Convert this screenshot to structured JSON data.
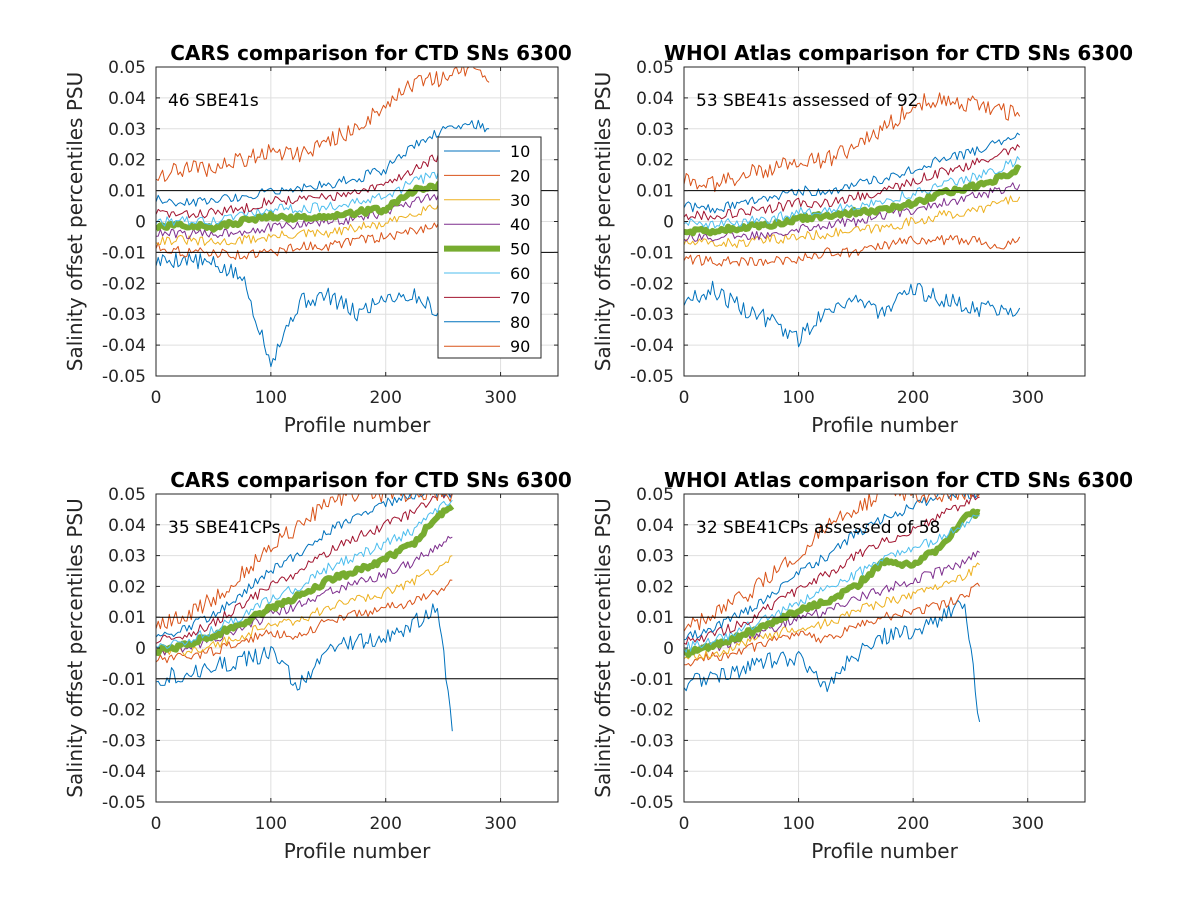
{
  "chart_data": [
    {
      "type": "line",
      "title": "CARS comparison for CTD SNs 6300",
      "annotation": "46 SBE41s",
      "xlabel": "Profile number",
      "ylabel": "Salinity offset percentiles PSU",
      "xlim": [
        0,
        350
      ],
      "ylim": [
        -0.05,
        0.05
      ],
      "xticks": [
        "0",
        "100",
        "200",
        "300"
      ],
      "yticks": [
        "-0.05",
        "-0.04",
        "-0.03",
        "-0.02",
        "-0.01",
        "0",
        "0.01",
        "0.02",
        "0.03",
        "0.04",
        "0.05"
      ],
      "reference_lines": [
        -0.01,
        0.01
      ],
      "grid": true,
      "legend_position": "inside-right",
      "x": [
        0,
        25,
        50,
        75,
        100,
        125,
        150,
        175,
        200,
        225,
        250,
        275,
        290
      ],
      "series": [
        {
          "name": "10",
          "values": [
            -0.013,
            -0.012,
            -0.014,
            -0.018,
            -0.045,
            -0.026,
            -0.024,
            -0.03,
            -0.024,
            -0.024,
            -0.03,
            -0.026,
            -0.022
          ]
        },
        {
          "name": "20",
          "values": [
            -0.008,
            -0.01,
            -0.01,
            -0.011,
            -0.01,
            -0.008,
            -0.008,
            -0.006,
            -0.005,
            -0.003,
            0.0,
            0.0,
            0.0
          ]
        },
        {
          "name": "30",
          "values": [
            -0.006,
            -0.006,
            -0.007,
            -0.006,
            -0.005,
            -0.004,
            -0.004,
            -0.002,
            -0.001,
            0.003,
            0.006,
            0.006,
            0.005
          ]
        },
        {
          "name": "40",
          "values": [
            -0.004,
            -0.004,
            -0.004,
            -0.003,
            -0.002,
            -0.001,
            0.0,
            0.001,
            0.003,
            0.006,
            0.009,
            0.01,
            0.01
          ]
        },
        {
          "name": "50",
          "values": [
            -0.002,
            -0.001,
            -0.002,
            0.0,
            0.002,
            0.001,
            0.002,
            0.003,
            0.004,
            0.01,
            0.012,
            0.013,
            0.013
          ]
        },
        {
          "name": "60",
          "values": [
            0.0,
            0.0,
            0.0,
            0.002,
            0.004,
            0.004,
            0.005,
            0.006,
            0.008,
            0.013,
            0.016,
            0.017,
            0.017
          ]
        },
        {
          "name": "70",
          "values": [
            0.003,
            0.002,
            0.003,
            0.004,
            0.007,
            0.007,
            0.008,
            0.009,
            0.012,
            0.017,
            0.022,
            0.022,
            0.022
          ]
        },
        {
          "name": "80",
          "values": [
            0.007,
            0.006,
            0.007,
            0.008,
            0.01,
            0.011,
            0.012,
            0.014,
            0.017,
            0.025,
            0.03,
            0.032,
            0.03
          ]
        },
        {
          "name": "90",
          "values": [
            0.015,
            0.017,
            0.017,
            0.02,
            0.023,
            0.022,
            0.026,
            0.03,
            0.038,
            0.045,
            0.046,
            0.05,
            0.045
          ]
        }
      ]
    },
    {
      "type": "line",
      "title": "WHOI Atlas comparison for CTD SNs 6300",
      "annotation": "53 SBE41s assessed of 92",
      "xlabel": "Profile number",
      "ylabel": "Salinity offset percentiles PSU",
      "xlim": [
        0,
        350
      ],
      "ylim": [
        -0.05,
        0.05
      ],
      "xticks": [
        "0",
        "100",
        "200",
        "300"
      ],
      "yticks": [
        "-0.05",
        "-0.04",
        "-0.03",
        "-0.02",
        "-0.01",
        "0",
        "0.01",
        "0.02",
        "0.03",
        "0.04",
        "0.05"
      ],
      "reference_lines": [
        -0.01,
        0.01
      ],
      "grid": true,
      "x": [
        0,
        25,
        50,
        75,
        100,
        125,
        150,
        175,
        200,
        225,
        250,
        275,
        293
      ],
      "series": [
        {
          "name": "10",
          "values": [
            -0.026,
            -0.022,
            -0.028,
            -0.032,
            -0.038,
            -0.028,
            -0.025,
            -0.03,
            -0.022,
            -0.025,
            -0.028,
            -0.028,
            -0.028
          ]
        },
        {
          "name": "20",
          "values": [
            -0.012,
            -0.013,
            -0.013,
            -0.013,
            -0.012,
            -0.01,
            -0.01,
            -0.008,
            -0.006,
            -0.006,
            -0.006,
            -0.008,
            -0.005
          ]
        },
        {
          "name": "30",
          "values": [
            -0.007,
            -0.007,
            -0.007,
            -0.006,
            -0.005,
            -0.004,
            -0.003,
            -0.002,
            0.0,
            0.002,
            0.003,
            0.006,
            0.008
          ]
        },
        {
          "name": "40",
          "values": [
            -0.005,
            -0.005,
            -0.005,
            -0.004,
            -0.002,
            -0.001,
            0.0,
            0.002,
            0.004,
            0.006,
            0.008,
            0.01,
            0.012
          ]
        },
        {
          "name": "50",
          "values": [
            -0.003,
            -0.003,
            -0.002,
            -0.001,
            0.001,
            0.002,
            0.003,
            0.004,
            0.006,
            0.009,
            0.011,
            0.014,
            0.017
          ]
        },
        {
          "name": "60",
          "values": [
            0.0,
            -0.001,
            0.0,
            0.001,
            0.003,
            0.004,
            0.005,
            0.007,
            0.009,
            0.012,
            0.014,
            0.017,
            0.02
          ]
        },
        {
          "name": "70",
          "values": [
            0.002,
            0.002,
            0.003,
            0.004,
            0.006,
            0.006,
            0.008,
            0.01,
            0.013,
            0.016,
            0.018,
            0.022,
            0.024
          ]
        },
        {
          "name": "80",
          "values": [
            0.005,
            0.004,
            0.006,
            0.007,
            0.01,
            0.01,
            0.012,
            0.014,
            0.017,
            0.02,
            0.022,
            0.026,
            0.028
          ]
        },
        {
          "name": "90",
          "values": [
            0.013,
            0.012,
            0.015,
            0.017,
            0.019,
            0.02,
            0.024,
            0.03,
            0.038,
            0.04,
            0.038,
            0.036,
            0.034
          ]
        }
      ]
    },
    {
      "type": "line",
      "title": "CARS comparison for CTD SNs 6300",
      "annotation": "35 SBE41CPs",
      "xlabel": "Profile number",
      "ylabel": "Salinity offset percentiles PSU",
      "xlim": [
        0,
        350
      ],
      "ylim": [
        -0.05,
        0.05
      ],
      "xticks": [
        "0",
        "100",
        "200",
        "300"
      ],
      "yticks": [
        "-0.05",
        "-0.04",
        "-0.03",
        "-0.02",
        "-0.01",
        "0",
        "0.01",
        "0.02",
        "0.03",
        "0.04",
        "0.05"
      ],
      "reference_lines": [
        -0.01,
        0.01
      ],
      "grid": true,
      "x": [
        0,
        25,
        50,
        75,
        100,
        125,
        150,
        175,
        200,
        225,
        245,
        258
      ],
      "series": [
        {
          "name": "10",
          "values": [
            -0.01,
            -0.008,
            -0.006,
            -0.004,
            -0.002,
            -0.012,
            0.0,
            0.002,
            0.003,
            0.008,
            0.014,
            -0.027
          ]
        },
        {
          "name": "20",
          "values": [
            -0.004,
            -0.003,
            -0.001,
            0.002,
            0.005,
            0.004,
            0.009,
            0.011,
            0.013,
            0.015,
            0.018,
            0.022
          ]
        },
        {
          "name": "30",
          "values": [
            -0.002,
            -0.001,
            0.001,
            0.004,
            0.008,
            0.009,
            0.013,
            0.016,
            0.018,
            0.022,
            0.026,
            0.03
          ]
        },
        {
          "name": "40",
          "values": [
            -0.001,
            0.0,
            0.003,
            0.006,
            0.011,
            0.014,
            0.018,
            0.021,
            0.024,
            0.028,
            0.033,
            0.036
          ]
        },
        {
          "name": "50",
          "values": [
            -0.001,
            0.001,
            0.004,
            0.008,
            0.013,
            0.017,
            0.022,
            0.025,
            0.029,
            0.034,
            0.043,
            0.046
          ]
        },
        {
          "name": "60",
          "values": [
            0.001,
            0.002,
            0.006,
            0.01,
            0.016,
            0.02,
            0.026,
            0.03,
            0.034,
            0.038,
            0.045,
            0.048
          ]
        },
        {
          "name": "70",
          "values": [
            0.002,
            0.004,
            0.008,
            0.014,
            0.02,
            0.025,
            0.031,
            0.036,
            0.04,
            0.044,
            0.05,
            0.05
          ]
        },
        {
          "name": "80",
          "values": [
            0.004,
            0.006,
            0.011,
            0.018,
            0.025,
            0.031,
            0.038,
            0.043,
            0.047,
            0.05,
            0.05,
            0.05
          ]
        },
        {
          "name": "90",
          "values": [
            0.007,
            0.01,
            0.016,
            0.024,
            0.033,
            0.04,
            0.047,
            0.05,
            0.05,
            0.05,
            0.05,
            0.05
          ]
        }
      ]
    },
    {
      "type": "line",
      "title": "WHOI Atlas comparison for CTD SNs 6300",
      "annotation": "32 SBE41CPs assessed of 58",
      "xlabel": "Profile number",
      "ylabel": "Salinity offset percentiles PSU",
      "xlim": [
        0,
        350
      ],
      "ylim": [
        -0.05,
        0.05
      ],
      "xticks": [
        "0",
        "100",
        "200",
        "300"
      ],
      "yticks": [
        "-0.05",
        "-0.04",
        "-0.03",
        "-0.02",
        "-0.01",
        "0",
        "0.01",
        "0.02",
        "0.03",
        "0.04",
        "0.05"
      ],
      "reference_lines": [
        -0.01,
        0.01
      ],
      "grid": true,
      "x": [
        0,
        25,
        50,
        75,
        100,
        125,
        150,
        175,
        200,
        225,
        245,
        258
      ],
      "series": [
        {
          "name": "10",
          "values": [
            -0.012,
            -0.009,
            -0.007,
            -0.004,
            -0.003,
            -0.012,
            -0.002,
            0.004,
            0.005,
            0.01,
            0.015,
            -0.024
          ]
        },
        {
          "name": "20",
          "values": [
            -0.005,
            -0.003,
            -0.001,
            0.002,
            0.004,
            0.003,
            0.007,
            0.01,
            0.012,
            0.014,
            0.017,
            0.02
          ]
        },
        {
          "name": "30",
          "values": [
            -0.003,
            -0.002,
            0.001,
            0.004,
            0.007,
            0.008,
            0.012,
            0.015,
            0.017,
            0.02,
            0.023,
            0.027
          ]
        },
        {
          "name": "40",
          "values": [
            -0.001,
            0.0,
            0.003,
            0.006,
            0.01,
            0.012,
            0.016,
            0.019,
            0.022,
            0.025,
            0.028,
            0.031
          ]
        },
        {
          "name": "50",
          "values": [
            -0.002,
            0.001,
            0.004,
            0.008,
            0.012,
            0.015,
            0.02,
            0.028,
            0.027,
            0.033,
            0.043,
            0.044
          ]
        },
        {
          "name": "60",
          "values": [
            0.0,
            0.002,
            0.006,
            0.01,
            0.015,
            0.019,
            0.024,
            0.029,
            0.032,
            0.036,
            0.04,
            0.043
          ]
        },
        {
          "name": "70",
          "values": [
            0.002,
            0.004,
            0.008,
            0.013,
            0.019,
            0.024,
            0.03,
            0.035,
            0.038,
            0.043,
            0.047,
            0.049
          ]
        },
        {
          "name": "80",
          "values": [
            0.003,
            0.006,
            0.011,
            0.017,
            0.024,
            0.03,
            0.037,
            0.042,
            0.046,
            0.05,
            0.05,
            0.05
          ]
        },
        {
          "name": "90",
          "values": [
            0.006,
            0.01,
            0.016,
            0.023,
            0.031,
            0.039,
            0.046,
            0.05,
            0.05,
            0.05,
            0.05,
            0.05
          ]
        }
      ]
    }
  ],
  "colors": {
    "10": "#0072BD",
    "20": "#D95319",
    "30": "#EDB120",
    "40": "#7E2F8E",
    "50": "#77AC30",
    "60": "#4DBEEE",
    "70": "#A2142F",
    "80": "#0072BD",
    "90": "#D95319"
  }
}
